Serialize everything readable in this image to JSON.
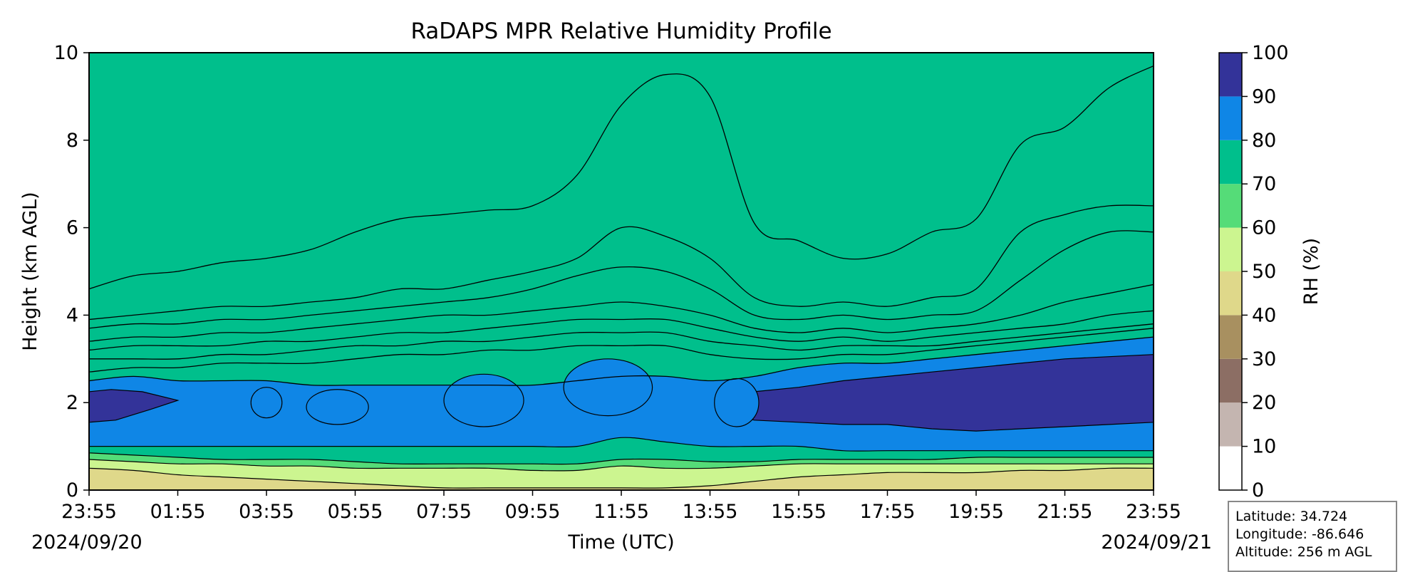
{
  "chart_data": {
    "type": "heatmap",
    "title": "RaDAPS MPR Relative Humidity Profile",
    "xlabel": "Time (UTC)",
    "ylabel": "Height (km AGL)",
    "x_ticks": [
      "23:55",
      "01:55",
      "03:55",
      "05:55",
      "07:55",
      "09:55",
      "11:55",
      "13:55",
      "15:55",
      "17:55",
      "19:55",
      "21:55",
      "23:55"
    ],
    "date_start": "2024/09/20",
    "date_end": "2024/09/21",
    "ylim": [
      0,
      10
    ],
    "y_ticks": [
      0,
      2,
      4,
      6,
      8,
      10
    ],
    "colorbar": {
      "label": "RH (%)",
      "levels": [
        0,
        10,
        20,
        30,
        40,
        50,
        60,
        70,
        80,
        90,
        100
      ],
      "colors": [
        "#ffffff",
        "#c4b5b0",
        "#8c6e64",
        "#a89060",
        "#dfd88a",
        "#ccf590",
        "#55dc78",
        "#00bf8c",
        "#0f86e6",
        "#333399"
      ]
    },
    "x_hours": [
      0,
      1,
      2,
      3,
      4,
      5,
      6,
      7,
      8,
      9,
      10,
      11,
      12,
      13,
      14,
      15,
      16,
      17,
      18,
      19,
      20,
      21,
      22,
      23,
      24
    ],
    "contour_heights_km": [
      {
        "level": 10,
        "y": [
          4.6,
          4.9,
          5.0,
          5.2,
          5.3,
          5.5,
          5.9,
          6.2,
          6.3,
          6.4,
          6.5,
          7.2,
          8.8,
          9.5,
          9.0,
          6.1,
          5.7,
          5.3,
          5.4,
          5.9,
          6.2,
          7.9,
          8.3,
          9.2,
          9.7
        ]
      },
      {
        "level": 20,
        "y": [
          3.9,
          4.0,
          4.1,
          4.2,
          4.2,
          4.3,
          4.4,
          4.6,
          4.6,
          4.8,
          5.0,
          5.3,
          6.0,
          5.8,
          5.3,
          4.4,
          4.2,
          4.3,
          4.2,
          4.4,
          4.6,
          5.9,
          6.3,
          6.5,
          6.5
        ]
      },
      {
        "level": 30,
        "y": [
          3.7,
          3.8,
          3.8,
          3.9,
          3.9,
          4.0,
          4.1,
          4.2,
          4.3,
          4.4,
          4.6,
          4.9,
          5.1,
          5.0,
          4.6,
          4.0,
          3.9,
          4.0,
          3.9,
          4.0,
          4.1,
          4.8,
          5.5,
          5.9,
          5.9
        ]
      },
      {
        "level": 40,
        "y": [
          3.4,
          3.5,
          3.5,
          3.6,
          3.6,
          3.7,
          3.8,
          3.9,
          4.0,
          4.0,
          4.1,
          4.2,
          4.3,
          4.2,
          4.0,
          3.7,
          3.6,
          3.7,
          3.6,
          3.7,
          3.8,
          4.0,
          4.3,
          4.5,
          4.7
        ]
      },
      {
        "level": 50,
        "y": [
          3.2,
          3.3,
          3.3,
          3.3,
          3.4,
          3.4,
          3.5,
          3.6,
          3.6,
          3.7,
          3.8,
          3.9,
          3.9,
          3.9,
          3.7,
          3.5,
          3.4,
          3.5,
          3.4,
          3.5,
          3.6,
          3.7,
          3.8,
          4.0,
          4.1
        ]
      },
      {
        "level": 60,
        "y": [
          3.0,
          3.0,
          3.0,
          3.1,
          3.1,
          3.2,
          3.3,
          3.3,
          3.4,
          3.4,
          3.5,
          3.6,
          3.6,
          3.6,
          3.4,
          3.3,
          3.2,
          3.3,
          3.3,
          3.3,
          3.4,
          3.5,
          3.6,
          3.7,
          3.8
        ]
      },
      {
        "level": 70,
        "y": [
          2.7,
          2.8,
          2.8,
          2.9,
          2.9,
          2.9,
          3.0,
          3.1,
          3.1,
          3.2,
          3.2,
          3.3,
          3.3,
          3.3,
          3.1,
          3.0,
          3.0,
          3.1,
          3.1,
          3.2,
          3.3,
          3.4,
          3.5,
          3.6,
          3.7
        ]
      },
      {
        "level": 80,
        "y": [
          2.5,
          2.6,
          2.5,
          2.5,
          2.5,
          2.4,
          2.4,
          2.4,
          2.4,
          2.4,
          2.4,
          2.5,
          2.6,
          2.6,
          2.5,
          2.6,
          2.8,
          2.9,
          2.9,
          3.0,
          3.1,
          3.2,
          3.3,
          3.4,
          3.5
        ]
      }
    ],
    "info": {
      "latitude": "Latitude: 34.724",
      "longitude": "Longitude: -86.646",
      "altitude": "Altitude: 256 m AGL"
    }
  }
}
